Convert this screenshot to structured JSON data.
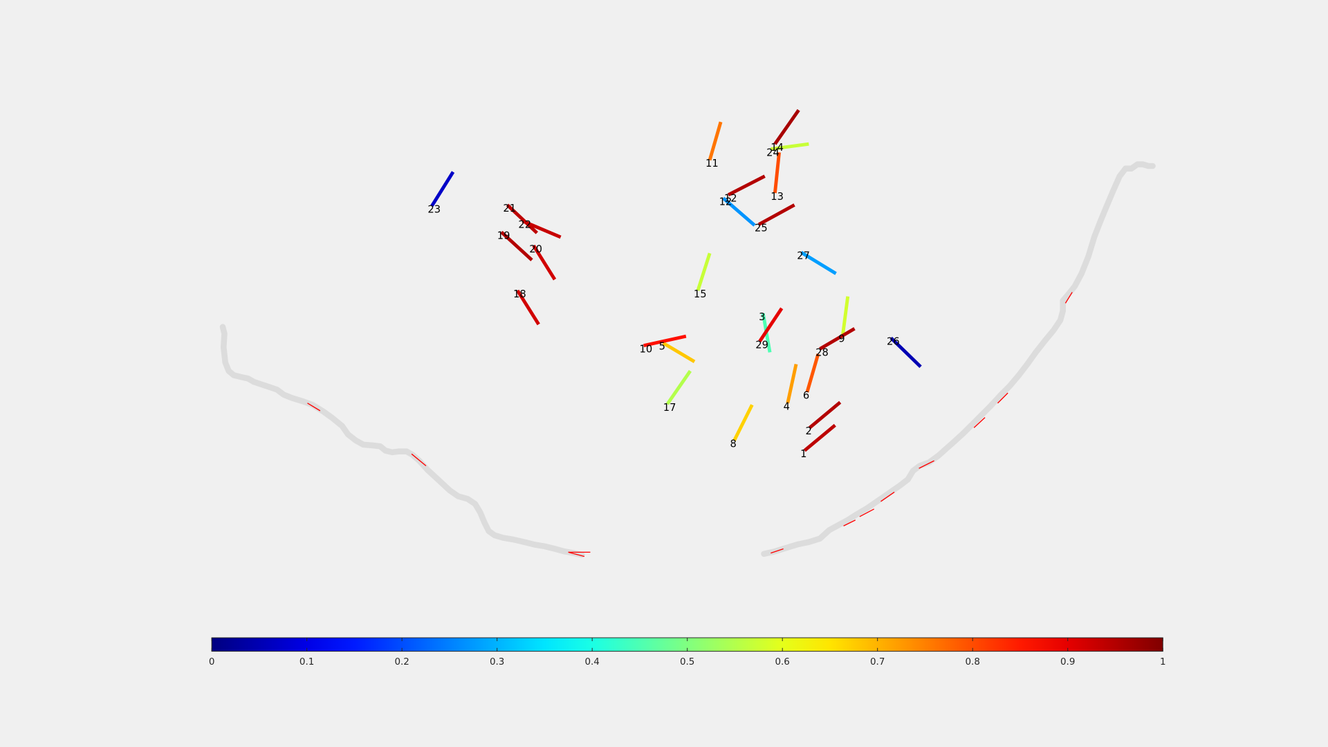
{
  "chart_data": {
    "type": "scatter",
    "title": "",
    "xlabel": "",
    "ylabel": "",
    "axis_visible": false,
    "grid": false,
    "xlim": [
      0,
      1568
    ],
    "ylim": [
      0,
      882
    ],
    "y_direction": "reverse",
    "colormap": "jet",
    "colorbar": {
      "location": "bottom",
      "limits": [
        0,
        1
      ],
      "ticks": [
        0,
        0.1,
        0.2,
        0.3,
        0.4,
        0.5,
        0.6,
        0.7,
        0.8,
        0.9,
        1
      ],
      "tick_labels": [
        "0",
        "0.1",
        "0.2",
        "0.3",
        "0.4",
        "0.5",
        "0.6",
        "0.7",
        "0.8",
        "0.9",
        "1"
      ]
    },
    "segments": [
      {
        "label": "1",
        "x": [
          950,
          986
        ],
        "y": [
          532,
          502
        ],
        "value": 0.94
      },
      {
        "label": "2",
        "x": [
          956,
          992
        ],
        "y": [
          505,
          475
        ],
        "value": 0.95
      },
      {
        "label": "3",
        "x": [
          901,
          909
        ],
        "y": [
          370,
          416
        ],
        "value": 0.45
      },
      {
        "label": "4",
        "x": [
          930,
          940
        ],
        "y": [
          476,
          430
        ],
        "value": 0.72
      },
      {
        "label": "5",
        "x": [
          783,
          820
        ],
        "y": [
          405,
          427
        ],
        "value": 0.68
      },
      {
        "label": "6",
        "x": [
          953,
          966
        ],
        "y": [
          463,
          418
        ],
        "value": 0.79
      },
      {
        "label": "8",
        "x": [
          867,
          888
        ],
        "y": [
          520,
          478
        ],
        "value": 0.67
      },
      {
        "label": "9",
        "x": [
          995,
          1001
        ],
        "y": [
          396,
          350
        ],
        "value": 0.58
      },
      {
        "label": "10",
        "x": [
          760,
          810
        ],
        "y": [
          408,
          397
        ],
        "value": 0.86
      },
      {
        "label": "11",
        "x": [
          838,
          851
        ],
        "y": [
          189,
          144
        ],
        "value": 0.76
      },
      {
        "label": "12",
        "x": [
          860,
          903
        ],
        "y": [
          230,
          208
        ],
        "value": 0.95
      },
      {
        "label": "13",
        "x": [
          915,
          920
        ],
        "y": [
          228,
          180
        ],
        "value": 0.8
      },
      {
        "label": "14",
        "x": [
          915,
          943
        ],
        "y": [
          170,
          130
        ],
        "value": 0.96
      },
      {
        "label": "15",
        "x": [
          824,
          838
        ],
        "y": [
          343,
          299
        ],
        "value": 0.57
      },
      {
        "label": "17",
        "x": [
          788,
          815
        ],
        "y": [
          477,
          438
        ],
        "value": 0.55
      },
      {
        "label": "18",
        "x": [
          611,
          636
        ],
        "y": [
          343,
          383
        ],
        "value": 0.92
      },
      {
        "label": "19",
        "x": [
          592,
          628
        ],
        "y": [
          274,
          307
        ],
        "value": 0.95
      },
      {
        "label": "20",
        "x": [
          630,
          655
        ],
        "y": [
          290,
          330
        ],
        "value": 0.92
      },
      {
        "label": "21",
        "x": [
          599,
          634
        ],
        "y": [
          242,
          275
        ],
        "value": 0.94
      },
      {
        "label": "22",
        "x": [
          617,
          662
        ],
        "y": [
          261,
          280
        ],
        "value": 0.93
      },
      {
        "label": "23",
        "x": [
          510,
          535
        ],
        "y": [
          243,
          203
        ],
        "value": 0.07
      },
      {
        "label": "24",
        "x": [
          910,
          955
        ],
        "y": [
          176,
          170
        ],
        "value": 0.57
      },
      {
        "label": "25",
        "x": [
          896,
          938
        ],
        "y": [
          265,
          242
        ],
        "value": 0.95
      },
      {
        "label": "26",
        "x": [
          1052,
          1087
        ],
        "y": [
          399,
          433
        ],
        "value": 0.05
      },
      {
        "label": "27",
        "x": [
          946,
          987
        ],
        "y": [
          298,
          323
        ],
        "value": 0.28
      },
      {
        "label": "28",
        "x": [
          968,
          1009
        ],
        "y": [
          412,
          388
        ],
        "value": 0.95
      },
      {
        "label": "29",
        "x": [
          897,
          923
        ],
        "y": [
          403,
          364
        ],
        "value": 0.9
      },
      {
        "label": "12",
        "x": [
          854,
          891
        ],
        "y": [
          234,
          266
        ],
        "value": 0.27
      }
    ],
    "boundaries": [
      {
        "color": "#dcdcdc",
        "x": [
          263,
          265,
          264,
          266,
          270,
          276,
          284,
          293,
          300,
          315,
          327,
          335,
          345,
          358,
          369,
          382,
          393,
          404,
          411,
          420,
          429,
          441,
          449,
          455,
          463,
          471,
          480,
          487,
          495,
          505,
          517,
          531,
          541,
          552,
          561,
          567,
          572,
          577,
          584,
          594,
          606,
          619,
          631,
          643,
          655,
          666,
          677,
          687
        ],
        "y": [
          386,
          394,
          410,
          428,
          438,
          443,
          445,
          447,
          451,
          456,
          460,
          466,
          470,
          474,
          478,
          486,
          494,
          503,
          513,
          520,
          525,
          526,
          527,
          532,
          534,
          533,
          533,
          537,
          544,
          555,
          566,
          579,
          586,
          589,
          595,
          605,
          617,
          627,
          632,
          635,
          637,
          640,
          643,
          645,
          648,
          651,
          653,
          655
        ]
      },
      {
        "color": "#dcdcdc",
        "x": [
          902,
          915,
          928,
          941,
          955,
          968,
          979,
          990,
          1001,
          1012,
          1024,
          1037,
          1050,
          1063,
          1072,
          1078,
          1086,
          1097,
          1108,
          1117,
          1126,
          1137,
          1148,
          1159,
          1170,
          1181,
          1192,
          1203,
          1213,
          1223,
          1234,
          1244,
          1252,
          1255,
          1255,
          1261,
          1269,
          1277,
          1285,
          1292,
          1299,
          1306,
          1314,
          1322,
          1329,
          1336,
          1343,
          1349,
          1356,
          1361
        ],
        "y": [
          654,
          651,
          647,
          643,
          640,
          636,
          626,
          620,
          614,
          607,
          600,
          591,
          582,
          573,
          566,
          556,
          550,
          546,
          538,
          530,
          522,
          512,
          501,
          490,
          479,
          467,
          456,
          443,
          430,
          416,
          402,
          390,
          378,
          367,
          355,
          348,
          338,
          323,
          303,
          280,
          262,
          245,
          226,
          208,
          199,
          199,
          194,
          194,
          196,
          196
        ]
      }
    ],
    "boundary_ticks": [
      {
        "color": "#ff0000",
        "x": [
          363,
          378
        ],
        "y": [
          476,
          485
        ]
      },
      {
        "color": "#ff0000",
        "x": [
          486,
          503
        ],
        "y": [
          536,
          550
        ]
      },
      {
        "color": "#ff0000",
        "x": [
          671,
          697
        ],
        "y": [
          652,
          652
        ]
      },
      {
        "color": "#ff0000",
        "x": [
          671,
          690
        ],
        "y": [
          652,
          657
        ]
      },
      {
        "color": "#ff0000",
        "x": [
          910,
          925
        ],
        "y": [
          653,
          648
        ]
      },
      {
        "color": "#ff0000",
        "x": [
          996,
          1010
        ],
        "y": [
          621,
          614
        ]
      },
      {
        "color": "#ff0000",
        "x": [
          1015,
          1032
        ],
        "y": [
          610,
          601
        ]
      },
      {
        "color": "#ff0000",
        "x": [
          1040,
          1056
        ],
        "y": [
          592,
          581
        ]
      },
      {
        "color": "#ff0000",
        "x": [
          1085,
          1103
        ],
        "y": [
          553,
          544
        ]
      },
      {
        "color": "#ff0000",
        "x": [
          1150,
          1163
        ],
        "y": [
          505,
          493
        ]
      },
      {
        "color": "#ff0000",
        "x": [
          1178,
          1190
        ],
        "y": [
          476,
          464
        ]
      },
      {
        "color": "#ff0000",
        "x": [
          1258,
          1266
        ],
        "y": [
          358,
          345
        ]
      }
    ]
  }
}
